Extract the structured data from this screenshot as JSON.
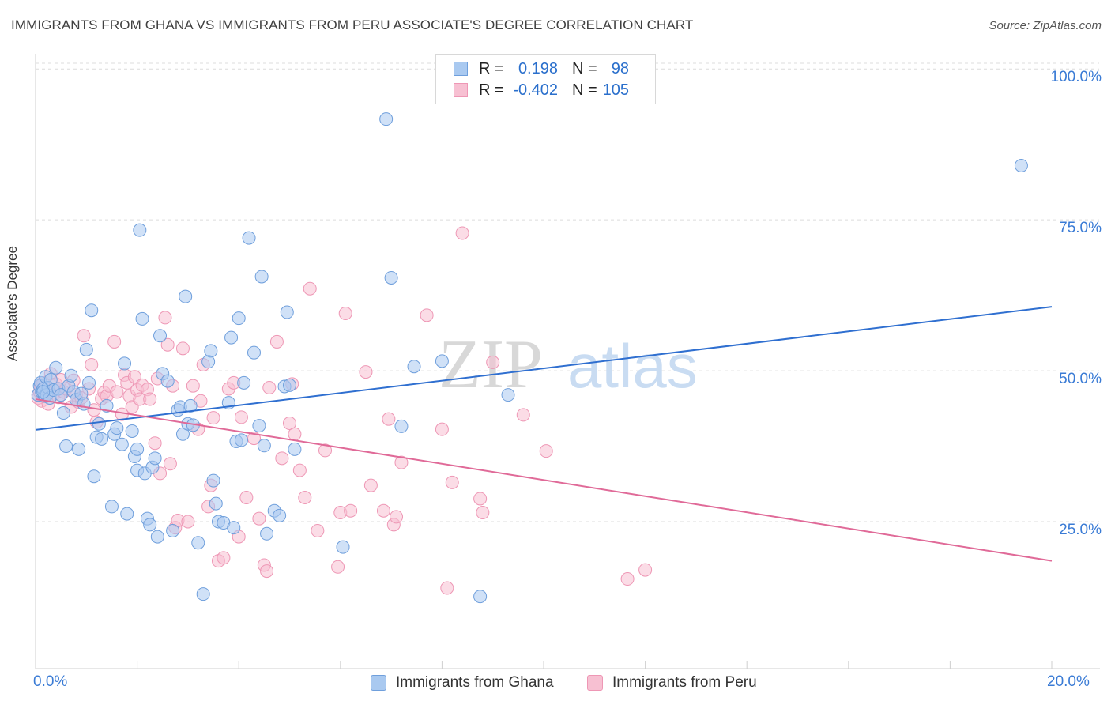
{
  "header": {
    "title": "IMMIGRANTS FROM GHANA VS IMMIGRANTS FROM PERU ASSOCIATE'S DEGREE CORRELATION CHART",
    "source": "Source: ZipAtlas.com"
  },
  "legend": {
    "rows": [
      {
        "r_label": "R =",
        "r_value": "0.198",
        "n_label": "N =",
        "n_value": "98"
      },
      {
        "r_label": "R =",
        "r_value": "-0.402",
        "n_label": "N =",
        "n_value": "105"
      }
    ]
  },
  "watermark": {
    "zip": "ZIP",
    "atlas": "atlas"
  },
  "colors": {
    "ghana_fill": "#a9c9f0",
    "ghana_stroke": "#6f9fdc",
    "ghana_line": "#2f6fd0",
    "peru_fill": "#f7c0d2",
    "peru_stroke": "#ee97b5",
    "peru_line": "#e06a98",
    "axis_text": "#3a7bd5",
    "grid": "#dcdcdc"
  },
  "chart_data": {
    "type": "scatter",
    "title": "IMMIGRANTS FROM GHANA VS IMMIGRANTS FROM PERU ASSOCIATE'S DEGREE CORRELATION CHART",
    "xlabel": "",
    "ylabel": "Associate's Degree",
    "x_tick_labels": [
      "0.0%",
      "20.0%"
    ],
    "y_tick_labels": [
      "100.0%",
      "75.0%",
      "50.0%",
      "25.0%"
    ],
    "y_ticks": [
      100,
      75,
      50,
      25
    ],
    "xlim": [
      0,
      20
    ],
    "ylim": [
      3,
      102
    ],
    "grid": true,
    "series": [
      {
        "name": "Immigrants from Ghana",
        "trend": {
          "x": [
            0,
            20
          ],
          "y": [
            40.2,
            60.6
          ]
        },
        "points": [
          [
            0.05,
            46
          ],
          [
            0.08,
            47.5
          ],
          [
            0.1,
            48
          ],
          [
            0.12,
            46.5
          ],
          [
            0.15,
            47
          ],
          [
            0.18,
            45.8
          ],
          [
            0.2,
            49
          ],
          [
            0.22,
            46
          ],
          [
            0.25,
            47.2
          ],
          [
            0.28,
            45.5
          ],
          [
            0.3,
            48.5
          ],
          [
            0.35,
            46.8
          ],
          [
            0.4,
            50.5
          ],
          [
            0.45,
            47
          ],
          [
            0.5,
            46
          ],
          [
            0.55,
            43
          ],
          [
            0.6,
            37.5
          ],
          [
            0.65,
            47.5
          ],
          [
            0.7,
            49.2
          ],
          [
            0.75,
            46.5
          ],
          [
            0.8,
            45.2
          ],
          [
            0.85,
            37
          ],
          [
            0.9,
            46.2
          ],
          [
            0.95,
            44.5
          ],
          [
            1.0,
            53.5
          ],
          [
            1.05,
            48
          ],
          [
            1.1,
            60
          ],
          [
            1.15,
            32.5
          ],
          [
            1.2,
            39
          ],
          [
            1.25,
            41.2
          ],
          [
            1.3,
            38.7
          ],
          [
            1.4,
            44.2
          ],
          [
            1.5,
            27.5
          ],
          [
            1.55,
            39.5
          ],
          [
            1.6,
            40.5
          ],
          [
            1.7,
            37.8
          ],
          [
            1.75,
            51.2
          ],
          [
            1.8,
            26.3
          ],
          [
            1.9,
            40
          ],
          [
            1.95,
            35.8
          ],
          [
            2.0,
            33.5
          ],
          [
            2.05,
            73.3
          ],
          [
            2.1,
            58.6
          ],
          [
            2.15,
            33
          ],
          [
            2.2,
            25.5
          ],
          [
            2.25,
            24.5
          ],
          [
            2.3,
            34
          ],
          [
            2.35,
            35.5
          ],
          [
            2.4,
            22.5
          ],
          [
            2.45,
            55.8
          ],
          [
            2.5,
            49.5
          ],
          [
            2.6,
            48.3
          ],
          [
            2.7,
            23.5
          ],
          [
            2.8,
            43.5
          ],
          [
            2.85,
            44
          ],
          [
            2.9,
            39.5
          ],
          [
            2.95,
            62.3
          ],
          [
            3.0,
            41.2
          ],
          [
            3.05,
            44.2
          ],
          [
            3.1,
            41
          ],
          [
            3.2,
            21.5
          ],
          [
            3.3,
            13
          ],
          [
            3.4,
            51.5
          ],
          [
            3.45,
            53.3
          ],
          [
            3.5,
            31.8
          ],
          [
            3.55,
            28
          ],
          [
            3.6,
            25
          ],
          [
            3.7,
            24.8
          ],
          [
            3.8,
            44.7
          ],
          [
            3.85,
            55.5
          ],
          [
            3.9,
            24
          ],
          [
            3.95,
            38.3
          ],
          [
            4.0,
            58.7
          ],
          [
            4.05,
            38.5
          ],
          [
            4.1,
            48
          ],
          [
            4.2,
            72
          ],
          [
            4.3,
            53
          ],
          [
            4.4,
            40.9
          ],
          [
            4.45,
            65.6
          ],
          [
            4.5,
            37.6
          ],
          [
            4.55,
            23
          ],
          [
            4.7,
            26.8
          ],
          [
            4.8,
            26
          ],
          [
            4.9,
            47.4
          ],
          [
            4.95,
            59.7
          ],
          [
            5.0,
            47.6
          ],
          [
            5.1,
            37
          ],
          [
            6.05,
            20.8
          ],
          [
            6.9,
            91.7
          ],
          [
            7.0,
            65.4
          ],
          [
            7.2,
            40.8
          ],
          [
            7.45,
            50.7
          ],
          [
            8.0,
            51.6
          ],
          [
            8.75,
            12.6
          ],
          [
            9.3,
            46
          ],
          [
            19.4,
            84
          ],
          [
            0.15,
            46.5
          ],
          [
            2.0,
            37
          ]
        ]
      },
      {
        "name": "Immigrants from Peru",
        "trend": {
          "x": [
            0,
            20
          ],
          "y": [
            45.3,
            18.5
          ]
        },
        "points": [
          [
            0.05,
            45.5
          ],
          [
            0.08,
            46.5
          ],
          [
            0.1,
            47.5
          ],
          [
            0.12,
            45
          ],
          [
            0.15,
            48
          ],
          [
            0.18,
            46
          ],
          [
            0.2,
            47.2
          ],
          [
            0.25,
            44.5
          ],
          [
            0.3,
            49.5
          ],
          [
            0.35,
            46
          ],
          [
            0.4,
            47.8
          ],
          [
            0.45,
            45.6
          ],
          [
            0.5,
            48.5
          ],
          [
            0.55,
            46.5
          ],
          [
            0.6,
            47
          ],
          [
            0.7,
            44
          ],
          [
            0.75,
            48.4
          ],
          [
            0.8,
            46
          ],
          [
            0.85,
            44.8
          ],
          [
            0.9,
            45.5
          ],
          [
            0.95,
            55.8
          ],
          [
            1.05,
            47
          ],
          [
            1.1,
            51
          ],
          [
            1.15,
            43.5
          ],
          [
            1.2,
            41.5
          ],
          [
            1.3,
            45.4
          ],
          [
            1.35,
            46.4
          ],
          [
            1.4,
            45.8
          ],
          [
            1.45,
            47.5
          ],
          [
            1.55,
            54.8
          ],
          [
            1.6,
            46.5
          ],
          [
            1.7,
            42.8
          ],
          [
            1.75,
            49.3
          ],
          [
            1.8,
            48
          ],
          [
            1.85,
            45.8
          ],
          [
            1.9,
            44
          ],
          [
            1.95,
            49
          ],
          [
            2.0,
            46.8
          ],
          [
            2.05,
            45.3
          ],
          [
            2.1,
            47.6
          ],
          [
            2.2,
            46.9
          ],
          [
            2.25,
            45.3
          ],
          [
            2.35,
            38
          ],
          [
            2.4,
            48.7
          ],
          [
            2.45,
            33
          ],
          [
            2.55,
            58.8
          ],
          [
            2.6,
            54.3
          ],
          [
            2.65,
            34.6
          ],
          [
            2.7,
            47.5
          ],
          [
            2.75,
            24
          ],
          [
            2.8,
            25.2
          ],
          [
            2.9,
            53.7
          ],
          [
            3.0,
            25
          ],
          [
            3.1,
            47.5
          ],
          [
            3.2,
            40.3
          ],
          [
            3.25,
            45
          ],
          [
            3.3,
            51
          ],
          [
            3.4,
            27.5
          ],
          [
            3.45,
            31
          ],
          [
            3.5,
            42.2
          ],
          [
            3.6,
            18.5
          ],
          [
            3.7,
            19
          ],
          [
            3.8,
            47
          ],
          [
            3.9,
            48
          ],
          [
            4.0,
            22.5
          ],
          [
            4.05,
            42.3
          ],
          [
            4.15,
            29
          ],
          [
            4.3,
            38.8
          ],
          [
            4.4,
            25.5
          ],
          [
            4.5,
            17.8
          ],
          [
            4.55,
            16.8
          ],
          [
            4.6,
            47.2
          ],
          [
            4.75,
            54.8
          ],
          [
            4.85,
            35.5
          ],
          [
            5.0,
            41.3
          ],
          [
            5.05,
            47.8
          ],
          [
            5.1,
            39.5
          ],
          [
            5.2,
            33.5
          ],
          [
            5.3,
            29
          ],
          [
            5.4,
            63.6
          ],
          [
            5.55,
            23.5
          ],
          [
            5.7,
            36.8
          ],
          [
            5.95,
            17.5
          ],
          [
            6.0,
            26.5
          ],
          [
            6.1,
            59.5
          ],
          [
            6.2,
            26.8
          ],
          [
            6.5,
            49.8
          ],
          [
            6.6,
            31
          ],
          [
            6.85,
            26.8
          ],
          [
            6.95,
            42
          ],
          [
            7.05,
            24.5
          ],
          [
            7.1,
            25.8
          ],
          [
            7.2,
            34.8
          ],
          [
            7.7,
            59.2
          ],
          [
            8.0,
            40.3
          ],
          [
            8.1,
            14
          ],
          [
            8.2,
            31.5
          ],
          [
            8.4,
            72.8
          ],
          [
            8.75,
            28.8
          ],
          [
            8.8,
            26.5
          ],
          [
            9.0,
            51.4
          ],
          [
            9.6,
            42.7
          ],
          [
            10.05,
            36.7
          ],
          [
            11.65,
            15.5
          ],
          [
            12.0,
            17
          ]
        ]
      }
    ]
  },
  "bottom_legend": {
    "ghana": "Immigrants from Ghana",
    "peru": "Immigrants from Peru"
  }
}
